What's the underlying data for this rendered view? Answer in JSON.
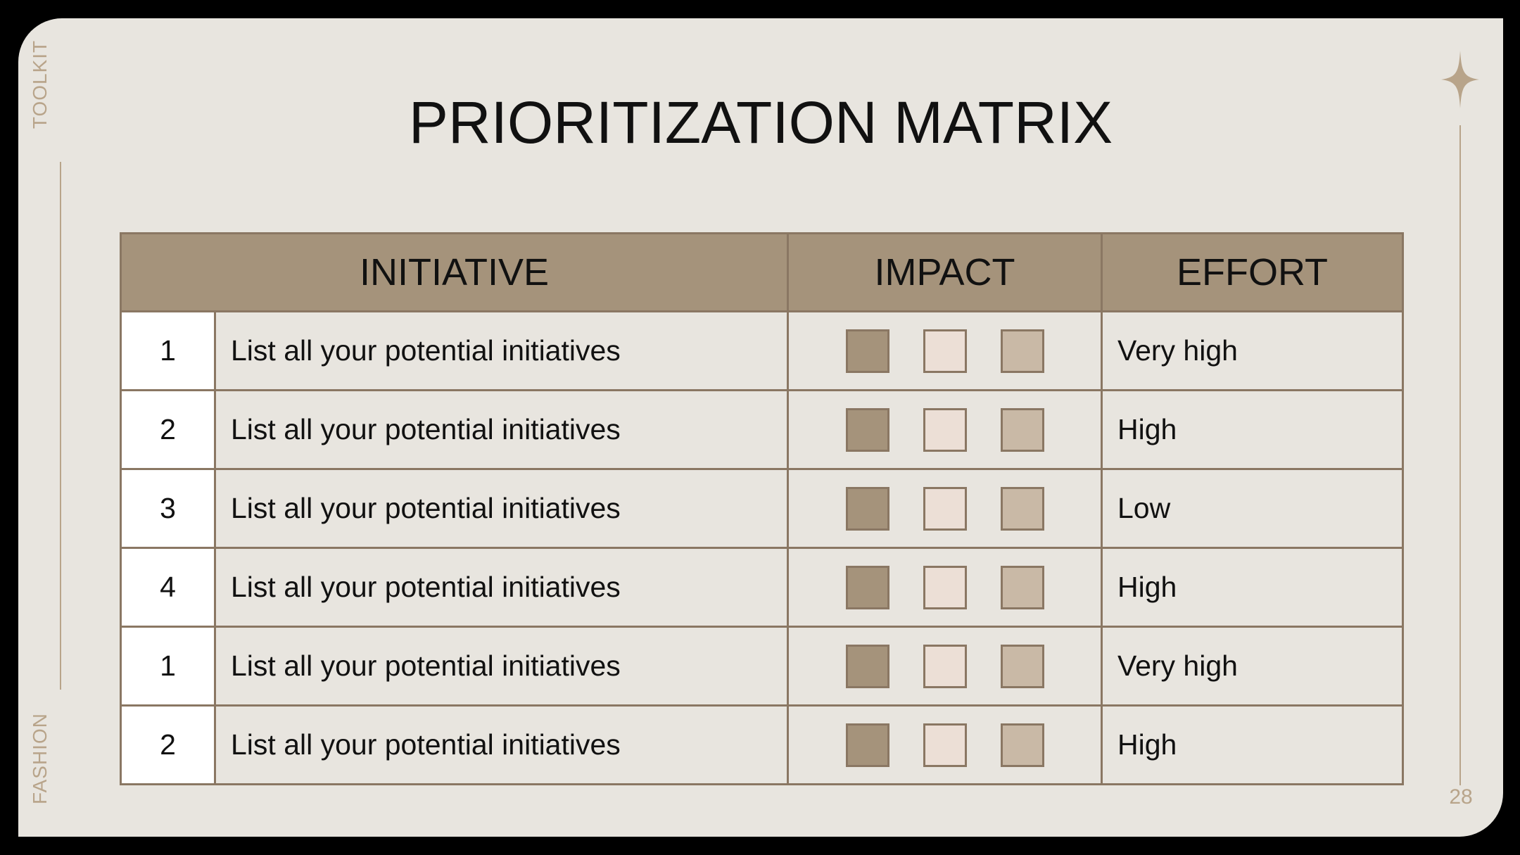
{
  "side_labels": {
    "top": "TOOLKIT",
    "bottom": "FASHION"
  },
  "title": "PRIORITIZATION MATRIX",
  "page_number": "28",
  "colors": {
    "background": "#e8e5df",
    "header": "#a5937b",
    "border": "#8a7763",
    "accent": "#b8a48a",
    "square_dark": "#a5937b",
    "square_light": "#ecdfd6",
    "square_mid": "#c9b9a6"
  },
  "table": {
    "headers": {
      "initiative": "INITIATIVE",
      "impact": "IMPACT",
      "effort": "EFFORT"
    },
    "rows": [
      {
        "num": "1",
        "initiative": "List all your potential initiatives",
        "effort": "Very high"
      },
      {
        "num": "2",
        "initiative": "List all your potential initiatives",
        "effort": "High"
      },
      {
        "num": "3",
        "initiative": "List all your potential initiatives",
        "effort": "Low"
      },
      {
        "num": "4",
        "initiative": "List all your potential initiatives",
        "effort": "High"
      },
      {
        "num": "1",
        "initiative": "List all your potential initiatives",
        "effort": "Very high"
      },
      {
        "num": "2",
        "initiative": "List all your potential initiatives",
        "effort": "High"
      }
    ]
  },
  "icons": {
    "corner": "four-point-star-icon"
  }
}
